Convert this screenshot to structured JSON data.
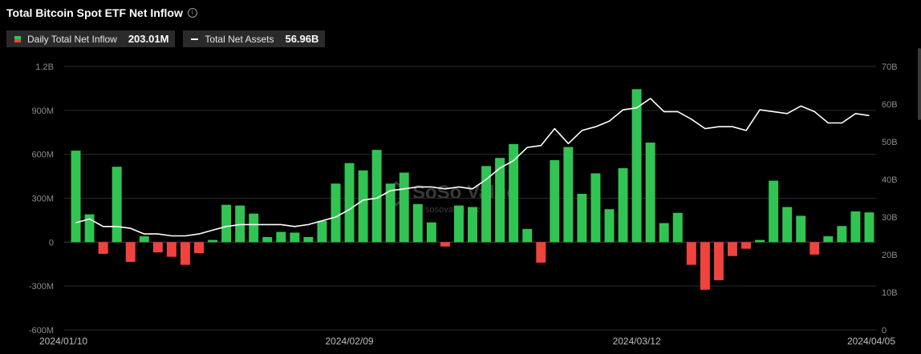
{
  "header": {
    "title": "Total Bitcoin Spot ETF Net Inflow",
    "info_icon": "info-icon"
  },
  "legend": [
    {
      "label": "Daily Total Net Inflow",
      "value": "203.01M",
      "icon": "bar-swatch-icon"
    },
    {
      "label": "Total Net Assets",
      "value": "56.96B",
      "icon": "line-swatch-icon"
    }
  ],
  "colors": {
    "positive": "#31c453",
    "negative": "#f0433f",
    "line": "#ffffff",
    "grid": "#2b2b2b",
    "axis_text": "#8c8c8c"
  },
  "chart_data": {
    "type": "bar",
    "left_axis": {
      "ticks": [
        "1.2B",
        "900M",
        "600M",
        "300M",
        "0",
        "-300M",
        "-600M"
      ],
      "range": [
        -600,
        1200
      ],
      "unit": "M"
    },
    "right_axis": {
      "ticks": [
        "70B",
        "60B",
        "50B",
        "40B",
        "30B",
        "20B",
        "10B",
        "0"
      ],
      "range": [
        0,
        70
      ],
      "unit": "B"
    },
    "date_labels": [
      "2024/01/10",
      "2024/02/09",
      "2024/03/12",
      "2024/04/05"
    ],
    "grid": true,
    "series": [
      {
        "name": "Daily Total Net Inflow",
        "type": "bar",
        "values": [
          625,
          190,
          -80,
          515,
          -135,
          40,
          -70,
          -100,
          -155,
          -75,
          15,
          255,
          250,
          195,
          35,
          70,
          65,
          35,
          145,
          400,
          540,
          490,
          630,
          400,
          475,
          260,
          135,
          -30,
          250,
          240,
          520,
          575,
          670,
          90,
          -140,
          560,
          650,
          330,
          470,
          225,
          505,
          1045,
          680,
          130,
          200,
          -155,
          -325,
          -260,
          -95,
          -45,
          15,
          420,
          240,
          180,
          -85,
          40,
          110,
          210,
          203
        ]
      },
      {
        "name": "Total Net Assets",
        "type": "line",
        "values": [
          28.5,
          29.5,
          27.5,
          27.5,
          27.0,
          25.5,
          25.5,
          25.0,
          25.0,
          25.5,
          26.5,
          27.5,
          28.0,
          28.0,
          28.0,
          28.0,
          27.5,
          28.0,
          29.0,
          30.0,
          32.0,
          34.5,
          35.0,
          37.0,
          37.5,
          38.0,
          38.0,
          37.5,
          38.0,
          37.5,
          40.0,
          43.0,
          45.0,
          48.5,
          49.0,
          53.5,
          49.5,
          53.0,
          54.0,
          55.5,
          58.5,
          59.0,
          61.5,
          58.0,
          58.0,
          56.0,
          53.5,
          54.0,
          54.0,
          53.0,
          58.5,
          58.0,
          57.5,
          59.5,
          58.0,
          55.0,
          55.0,
          57.5,
          56.96
        ]
      }
    ]
  },
  "watermark": {
    "name": "SoSo Value",
    "url": "sosovalue.xyz"
  }
}
